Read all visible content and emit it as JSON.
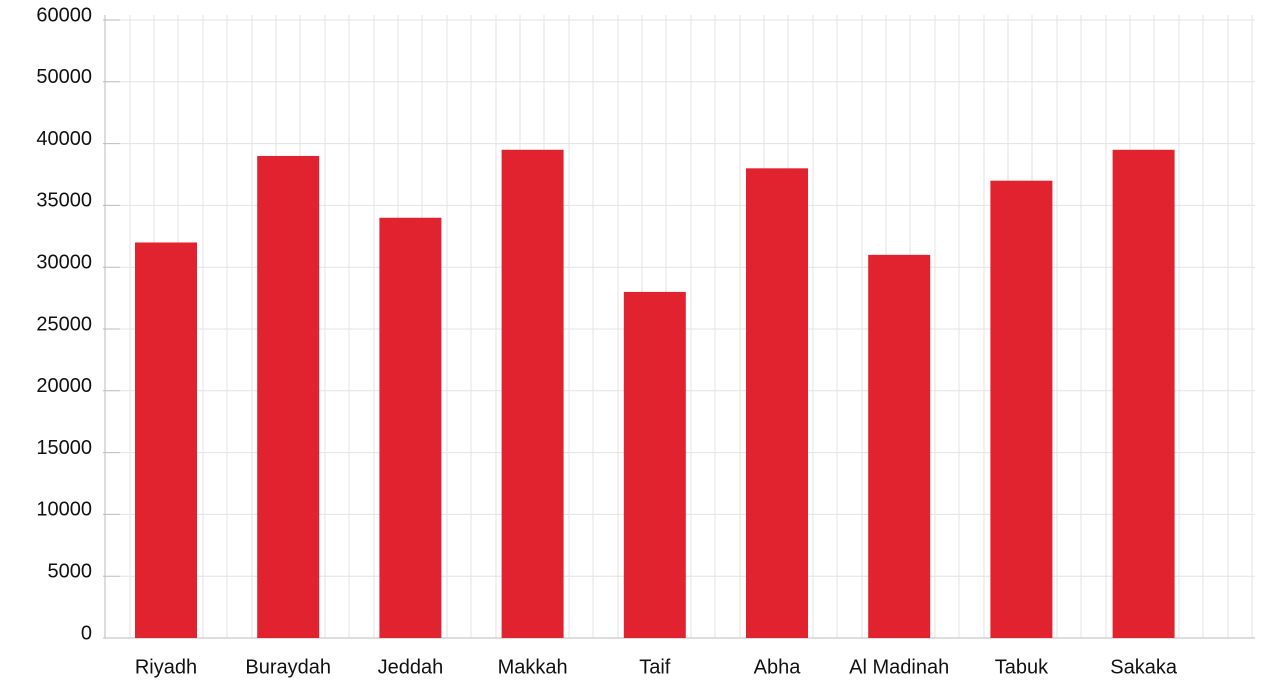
{
  "chart_data": {
    "type": "bar",
    "categories": [
      "Riyadh",
      "Buraydah",
      "Jeddah",
      "Makkah",
      "Taif",
      "Abha",
      "Al Madinah",
      "Tabuk",
      "Sakaka"
    ],
    "values": [
      32000,
      39000,
      34000,
      39500,
      28000,
      38000,
      31000,
      37000,
      39500
    ],
    "color": "#e12330",
    "ylim": [
      0,
      60000
    ],
    "yticks": [
      0,
      5000,
      10000,
      15000,
      20000,
      25000,
      30000,
      35000,
      40000,
      50000,
      60000
    ],
    "grid": true
  }
}
